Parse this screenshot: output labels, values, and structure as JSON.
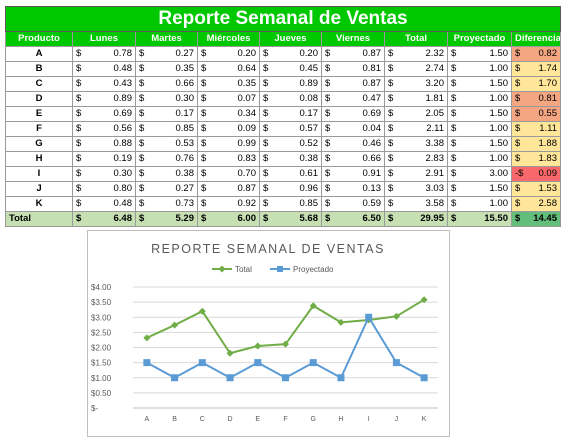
{
  "title": "Reporte Semanal de Ventas",
  "headers": [
    "Producto",
    "Lunes",
    "Martes",
    "Miércoles",
    "Jueves",
    "Viernes",
    "Total",
    "Proyectado",
    "Diferencia"
  ],
  "currency": "$",
  "rows": [
    {
      "producto": "A",
      "lunes": "0.78",
      "martes": "0.27",
      "miercoles": "0.20",
      "jueves": "0.20",
      "viernes": "0.87",
      "total": "2.32",
      "proyectado": "1.50",
      "diff_sign": "$",
      "diferencia": "0.82",
      "color": "#f4a582"
    },
    {
      "producto": "B",
      "lunes": "0.48",
      "martes": "0.35",
      "miercoles": "0.64",
      "jueves": "0.45",
      "viernes": "0.81",
      "total": "2.74",
      "proyectado": "1.00",
      "diff_sign": "$",
      "diferencia": "1.74",
      "color": "#ffe699"
    },
    {
      "producto": "C",
      "lunes": "0.43",
      "martes": "0.66",
      "miercoles": "0.35",
      "jueves": "0.89",
      "viernes": "0.87",
      "total": "3.20",
      "proyectado": "1.50",
      "diff_sign": "$",
      "diferencia": "1.70",
      "color": "#ffe699"
    },
    {
      "producto": "D",
      "lunes": "0.89",
      "martes": "0.30",
      "miercoles": "0.07",
      "jueves": "0.08",
      "viernes": "0.47",
      "total": "1.81",
      "proyectado": "1.00",
      "diff_sign": "$",
      "diferencia": "0.81",
      "color": "#f4a582"
    },
    {
      "producto": "E",
      "lunes": "0.69",
      "martes": "0.17",
      "miercoles": "0.34",
      "jueves": "0.17",
      "viernes": "0.69",
      "total": "2.05",
      "proyectado": "1.50",
      "diff_sign": "$",
      "diferencia": "0.55",
      "color": "#f4a582"
    },
    {
      "producto": "F",
      "lunes": "0.56",
      "martes": "0.85",
      "miercoles": "0.09",
      "jueves": "0.57",
      "viernes": "0.04",
      "total": "2.11",
      "proyectado": "1.00",
      "diff_sign": "$",
      "diferencia": "1.11",
      "color": "#ffe699"
    },
    {
      "producto": "G",
      "lunes": "0.88",
      "martes": "0.53",
      "miercoles": "0.99",
      "jueves": "0.52",
      "viernes": "0.46",
      "total": "3.38",
      "proyectado": "1.50",
      "diff_sign": "$",
      "diferencia": "1.88",
      "color": "#ffe699"
    },
    {
      "producto": "H",
      "lunes": "0.19",
      "martes": "0.76",
      "miercoles": "0.83",
      "jueves": "0.38",
      "viernes": "0.66",
      "total": "2.83",
      "proyectado": "1.00",
      "diff_sign": "$",
      "diferencia": "1.83",
      "color": "#ffe699"
    },
    {
      "producto": "I",
      "lunes": "0.30",
      "martes": "0.38",
      "miercoles": "0.70",
      "jueves": "0.61",
      "viernes": "0.91",
      "total": "2.91",
      "proyectado": "3.00",
      "diff_sign": "-$",
      "diferencia": "0.09",
      "color": "#f8696b"
    },
    {
      "producto": "J",
      "lunes": "0.80",
      "martes": "0.27",
      "miercoles": "0.87",
      "jueves": "0.96",
      "viernes": "0.13",
      "total": "3.03",
      "proyectado": "1.50",
      "diff_sign": "$",
      "diferencia": "1.53",
      "color": "#ffe699"
    },
    {
      "producto": "K",
      "lunes": "0.48",
      "martes": "0.73",
      "miercoles": "0.92",
      "jueves": "0.85",
      "viernes": "0.59",
      "total": "3.58",
      "proyectado": "1.00",
      "diff_sign": "$",
      "diferencia": "2.58",
      "color": "#ffe699"
    }
  ],
  "totals": {
    "label": "Total",
    "lunes": "6.48",
    "martes": "5.29",
    "miercoles": "6.00",
    "jueves": "5.68",
    "viernes": "6.50",
    "total": "29.95",
    "proyectado": "15.50",
    "diferencia": "14.45",
    "color": "#63be7b"
  },
  "chart_data": {
    "type": "line",
    "title": "REPORTE SEMANAL DE VENTAS",
    "categories": [
      "A",
      "B",
      "C",
      "D",
      "E",
      "F",
      "G",
      "H",
      "I",
      "J",
      "K"
    ],
    "series": [
      {
        "name": "Total",
        "color": "#70ad47",
        "marker": "diamond",
        "values": [
          2.32,
          2.74,
          3.2,
          1.81,
          2.05,
          2.11,
          3.38,
          2.83,
          2.91,
          3.03,
          3.58
        ]
      },
      {
        "name": "Proyectado",
        "color": "#5b9bd5",
        "marker": "square",
        "values": [
          1.5,
          1.0,
          1.5,
          1.0,
          1.5,
          1.0,
          1.5,
          1.0,
          3.0,
          1.5,
          1.0
        ]
      }
    ],
    "ylim": [
      0,
      4
    ],
    "yticks": [
      "$-",
      "$0.50",
      "$1.00",
      "$1.50",
      "$2.00",
      "$2.50",
      "$3.00",
      "$3.50",
      "$4.00"
    ],
    "legend": "top",
    "grid": true
  }
}
